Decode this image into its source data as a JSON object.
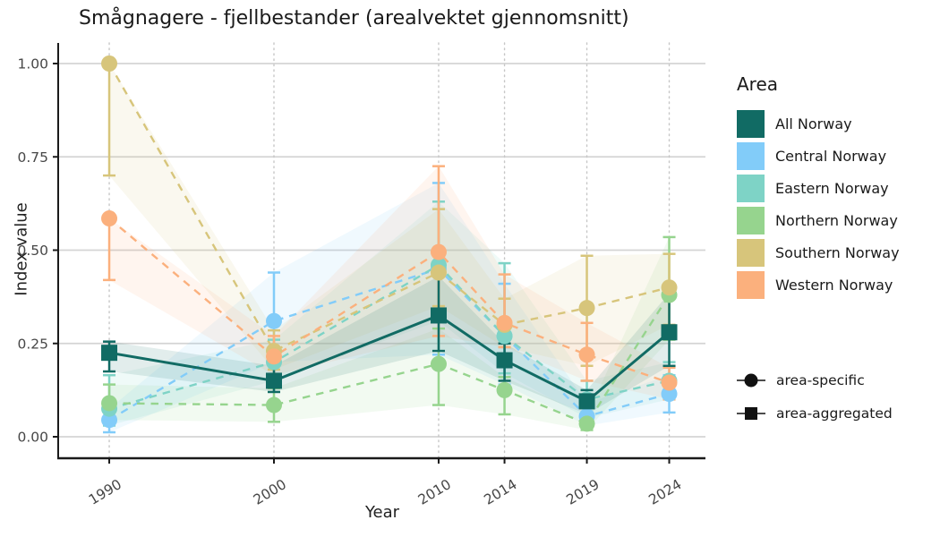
{
  "title": "Smågnagere - fjellbestander (arealvektet gjennomsnitt)",
  "axes": {
    "x_label": "Year",
    "y_label": "Index value",
    "x_ticks": [
      {
        "label": "1990",
        "value": 1990
      },
      {
        "label": "2000",
        "value": 2000
      },
      {
        "label": "2010",
        "value": 2010
      },
      {
        "label": "2014",
        "value": 2014
      },
      {
        "label": "2019",
        "value": 2019
      },
      {
        "label": "2024",
        "value": 2024
      }
    ],
    "y_ticks": [
      {
        "label": "0.00",
        "value": 0.0
      },
      {
        "label": "0.25",
        "value": 0.25
      },
      {
        "label": "0.50",
        "value": 0.5
      },
      {
        "label": "0.75",
        "value": 0.75
      },
      {
        "label": "1.00",
        "value": 1.0
      }
    ]
  },
  "legend": {
    "title": "Area",
    "items": [
      {
        "label": "All Norway",
        "color": "#116b64"
      },
      {
        "label": "Central Norway",
        "color": "#82ccf9"
      },
      {
        "label": "Eastern Norway",
        "color": "#7ed3c6"
      },
      {
        "label": "Northern Norway",
        "color": "#96d48e"
      },
      {
        "label": "Southern Norway",
        "color": "#d7c57b"
      },
      {
        "label": "Western Norway",
        "color": "#fbb07d"
      }
    ],
    "shape_items": [
      {
        "shape": "circle",
        "label": "area-specific"
      },
      {
        "shape": "square",
        "label": "area-aggregated"
      }
    ]
  },
  "chart_data": {
    "type": "line",
    "x": [
      1990,
      2000,
      2010,
      2014,
      2019,
      2024
    ],
    "xlim": [
      1987,
      2026
    ],
    "ylim": [
      0,
      1
    ],
    "grid": "horizontal-solid, vertical-dotted",
    "legend_position": "right",
    "series": [
      {
        "name": "All Norway",
        "color": "#116b64",
        "marker": "square",
        "line": "solid",
        "draw_order": 6,
        "values": [
          0.225,
          0.15,
          0.325,
          0.205,
          0.095,
          0.28
        ],
        "ci_low": [
          0.175,
          0.12,
          0.23,
          0.15,
          0.06,
          0.19
        ],
        "ci_high": [
          0.255,
          0.19,
          0.43,
          0.25,
          0.125,
          0.385
        ]
      },
      {
        "name": "Central Norway",
        "color": "#82ccf9",
        "marker": "circle",
        "line": "dashed",
        "draw_order": 1,
        "values": [
          0.045,
          0.31,
          0.45,
          0.27,
          0.055,
          0.115
        ],
        "ci_low": [
          0.012,
          0.2,
          0.22,
          0.14,
          0.03,
          0.065
        ],
        "ci_high": [
          0.075,
          0.44,
          0.68,
          0.41,
          0.09,
          0.165
        ]
      },
      {
        "name": "Eastern Norway",
        "color": "#7ed3c6",
        "marker": "circle",
        "line": "dashed",
        "draw_order": 2,
        "values": [
          0.075,
          0.2,
          0.46,
          0.27,
          0.1,
          0.15
        ],
        "ci_low": [
          0.03,
          0.15,
          0.31,
          0.17,
          0.05,
          0.1
        ],
        "ci_high": [
          0.165,
          0.26,
          0.63,
          0.465,
          0.15,
          0.2
        ]
      },
      {
        "name": "Northern Norway",
        "color": "#96d48e",
        "marker": "circle",
        "line": "dashed",
        "draw_order": 3,
        "values": [
          0.09,
          0.085,
          0.195,
          0.125,
          0.035,
          0.38
        ],
        "ci_low": [
          0.045,
          0.04,
          0.085,
          0.06,
          0.018,
          0.26
        ],
        "ci_high": [
          0.14,
          0.13,
          0.29,
          0.16,
          0.058,
          0.535
        ]
      },
      {
        "name": "Southern Norway",
        "color": "#d7c57b",
        "marker": "circle",
        "line": "dashed",
        "draw_order": 4,
        "values": [
          1.0,
          0.23,
          0.44,
          0.3,
          0.345,
          0.4
        ],
        "ci_low": [
          0.7,
          0.18,
          0.35,
          0.24,
          0.19,
          0.3
        ],
        "ci_high": [
          1.0,
          0.285,
          0.61,
          0.37,
          0.485,
          0.49
        ]
      },
      {
        "name": "Western Norway",
        "color": "#fbb07d",
        "marker": "circle",
        "line": "dashed",
        "draw_order": 5,
        "values": [
          0.585,
          0.215,
          0.495,
          0.305,
          0.22,
          0.145
        ],
        "ci_low": [
          0.42,
          0.165,
          0.27,
          0.24,
          0.15,
          0.1
        ],
        "ci_high": [
          0.585,
          0.27,
          0.725,
          0.435,
          0.305,
          0.185
        ]
      }
    ]
  }
}
